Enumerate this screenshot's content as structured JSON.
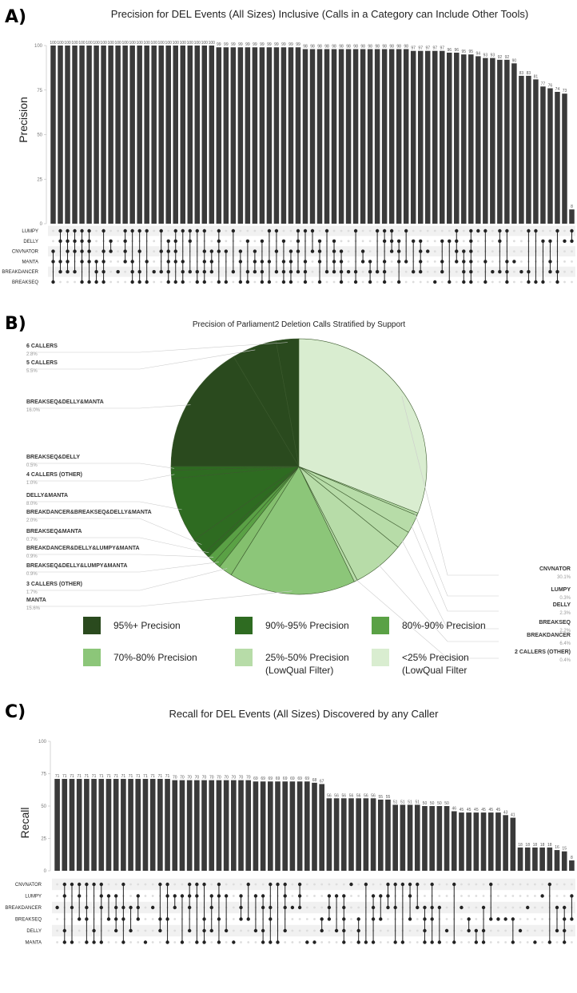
{
  "chart_data": [
    {
      "panel": "A)",
      "type": "bar",
      "title": "Precision for DEL Events (All Sizes) Inclusive (Calls in a Category can Include Other Tools)",
      "ylabel": "Precision",
      "ylim": [
        0,
        100
      ],
      "yticks": [
        "0",
        "25",
        "50",
        "75",
        "100"
      ],
      "values": [
        100,
        100,
        100,
        100,
        100,
        100,
        100,
        100,
        100,
        100,
        100,
        100,
        100,
        100,
        100,
        100,
        100,
        100,
        100,
        100,
        100,
        100,
        100,
        99,
        99,
        99,
        99,
        99,
        99,
        99,
        99,
        99,
        99,
        99,
        99,
        98,
        98,
        98,
        98,
        98,
        98,
        98,
        98,
        98,
        98,
        98,
        98,
        98,
        98,
        98,
        97,
        97,
        97,
        97,
        97,
        96,
        96,
        95,
        95,
        94,
        93,
        93,
        92,
        92,
        90,
        83,
        83,
        81,
        77,
        76,
        74,
        73,
        8
      ],
      "sets": [
        "LUMPY",
        "DELLY",
        "CNVNATOR",
        "MANTA",
        "BREAKDANCER",
        "BREAKSEQ"
      ]
    },
    {
      "panel": "B)",
      "type": "pie",
      "title": "Precision of Parliament2 Deletion Calls Stratified by Support",
      "slices": [
        {
          "label": "6 CALLERS",
          "pct": "2.8%",
          "value": 2.8,
          "color": "#2a4a1e"
        },
        {
          "label": "5 CALLERS",
          "pct": "5.5%",
          "value": 5.5,
          "color": "#2a4a1e"
        },
        {
          "label": "BREAKSEQ&DELLY&MANTA",
          "pct": "16.0%",
          "value": 16.0,
          "color": "#2a4a1e"
        },
        {
          "label": "BREAKSEQ&DELLY",
          "pct": "0.5%",
          "value": 0.5,
          "color": "#2e6b21"
        },
        {
          "label": "4 CALLERS (OTHER)",
          "pct": "1.0%",
          "value": 1.0,
          "color": "#2e6b21"
        },
        {
          "label": "DELLY&MANTA",
          "pct": "8.0%",
          "value": 8.0,
          "color": "#2e6b21"
        },
        {
          "label": "BREAKDANCER&BREAKSEQ&DELLY&MANTA",
          "pct": "2.0%",
          "value": 2.0,
          "color": "#2e6b21"
        },
        {
          "label": "BREAKSEQ&MANTA",
          "pct": "0.7%",
          "value": 0.7,
          "color": "#2e6b21"
        },
        {
          "label": "BREAKDANCER&DELLY&LUMPY&MANTA",
          "pct": "0.9%",
          "value": 0.9,
          "color": "#5aa145"
        },
        {
          "label": "BREAKSEQ&DELLY&LUMPY&MANTA",
          "pct": "0.9%",
          "value": 0.9,
          "color": "#5aa145"
        },
        {
          "label": "3 CALLERS (OTHER)",
          "pct": "1.7%",
          "value": 1.7,
          "color": "#84c06e"
        },
        {
          "label": "MANTA",
          "pct": "15.6%",
          "value": 15.6,
          "color": "#8cc679"
        },
        {
          "label": "2 CALLERS (OTHER)",
          "pct": "0.4%",
          "value": 0.4,
          "color": "#b7dca8"
        },
        {
          "label": "BREAKDANCER",
          "pct": "6.4%",
          "value": 6.4,
          "color": "#b7dca8"
        },
        {
          "label": "BREAKSEQ",
          "pct": "2.2%",
          "value": 2.2,
          "color": "#b7dca8"
        },
        {
          "label": "DELLY",
          "pct": "2.3%",
          "value": 2.3,
          "color": "#b7dca8"
        },
        {
          "label": "LUMPY",
          "pct": "0.3%",
          "value": 0.3,
          "color": "#b7dca8"
        },
        {
          "label": "CNVNATOR",
          "pct": "30.1%",
          "value": 30.1,
          "color": "#d9edd0"
        }
      ],
      "legend": [
        {
          "label": "95%+ Precision",
          "label2": "",
          "color": "#2a4a1e"
        },
        {
          "label": "90%-95% Precision",
          "label2": "",
          "color": "#2e6b21"
        },
        {
          "label": "80%-90% Precision",
          "label2": "",
          "color": "#5aa145"
        },
        {
          "label": "70%-80% Precision",
          "label2": "",
          "color": "#8cc679"
        },
        {
          "label": "25%-50% Precision",
          "label2": "(LowQual Filter)",
          "color": "#b7dca8"
        },
        {
          "label": "<25% Precision",
          "label2": "(LowQual Filter",
          "color": "#d9edd0"
        }
      ]
    },
    {
      "panel": "C)",
      "type": "bar",
      "title": "Recall for DEL Events (All Sizes) Discovered by any Caller",
      "ylabel": "Recall",
      "ylim": [
        0,
        100
      ],
      "yticks": [
        "0",
        "25",
        "50",
        "75",
        "100"
      ],
      "values": [
        71,
        71,
        71,
        71,
        71,
        71,
        71,
        71,
        71,
        71,
        71,
        71,
        71,
        71,
        71,
        71,
        70,
        70,
        70,
        70,
        70,
        70,
        70,
        70,
        70,
        70,
        70,
        69,
        69,
        69,
        69,
        69,
        69,
        69,
        69,
        68,
        67,
        56,
        56,
        56,
        56,
        56,
        56,
        56,
        55,
        55,
        51,
        51,
        51,
        51,
        50,
        50,
        50,
        50,
        46,
        45,
        45,
        45,
        45,
        45,
        45,
        43,
        41,
        18,
        18,
        18,
        18,
        18,
        16,
        15,
        8
      ],
      "sets": [
        "CNVNATOR",
        "LUMPY",
        "BREAKDANCER",
        "BREAKSEQ",
        "DELLY",
        "MANTA"
      ]
    }
  ]
}
